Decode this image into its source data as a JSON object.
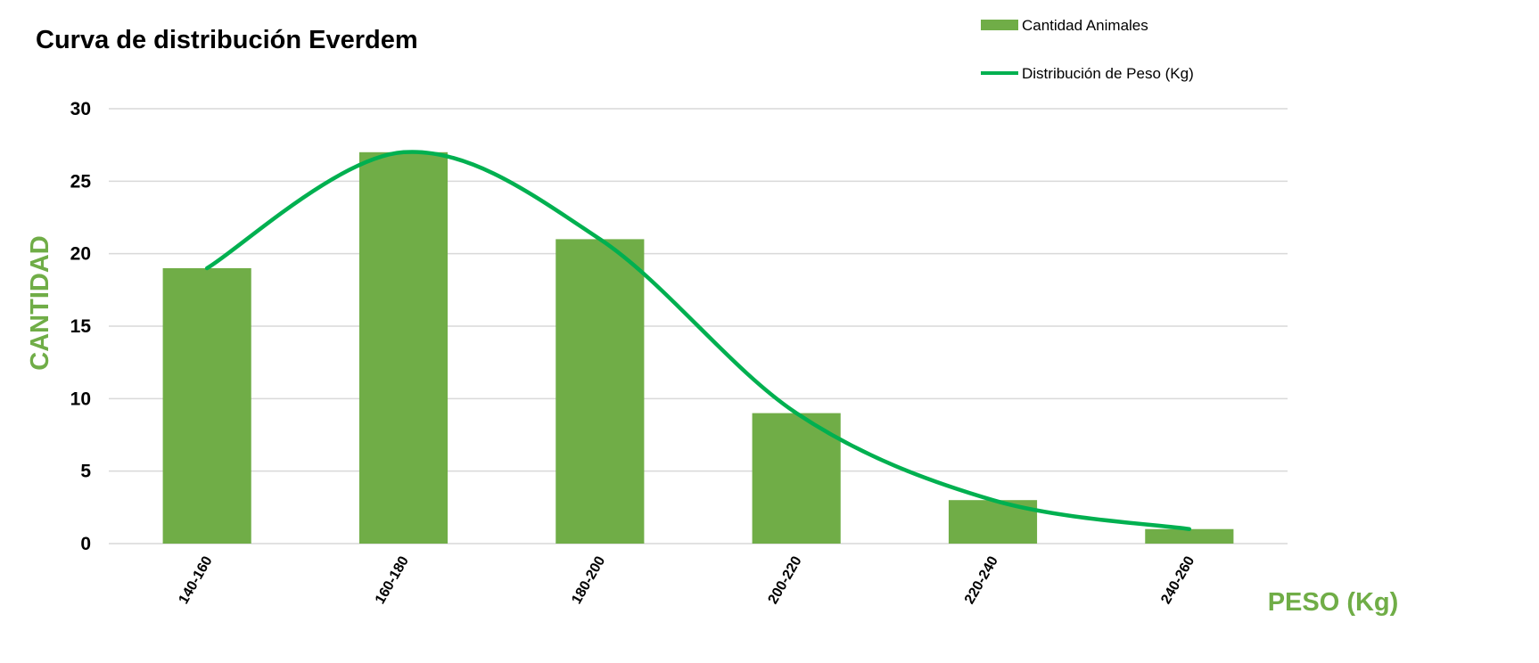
{
  "chart_data": {
    "type": "bar",
    "title": "Curva de distribución Everdem",
    "xlabel": "PESO (Kg)",
    "ylabel": "CANTIDAD",
    "categories": [
      "140-160",
      "160-180",
      "180-200",
      "200-220",
      "220-240",
      "240-260"
    ],
    "series": [
      {
        "name": "Cantidad Animales",
        "kind": "bar",
        "values": [
          19,
          27,
          21,
          9,
          3,
          1
        ]
      },
      {
        "name": "Distribución de Peso (Kg)",
        "kind": "smooth-line",
        "values": [
          19,
          27,
          21,
          9,
          3,
          1
        ]
      }
    ],
    "yticks": [
      "0",
      "5",
      "10",
      "15",
      "20",
      "25",
      "30"
    ],
    "ylim": [
      0,
      30
    ],
    "grid": true,
    "legend_position": "top-right",
    "colors": {
      "bar": "#70ad47",
      "line": "#00b050",
      "axis_label": "#70ad47",
      "grid": "#d9d9d9"
    }
  }
}
